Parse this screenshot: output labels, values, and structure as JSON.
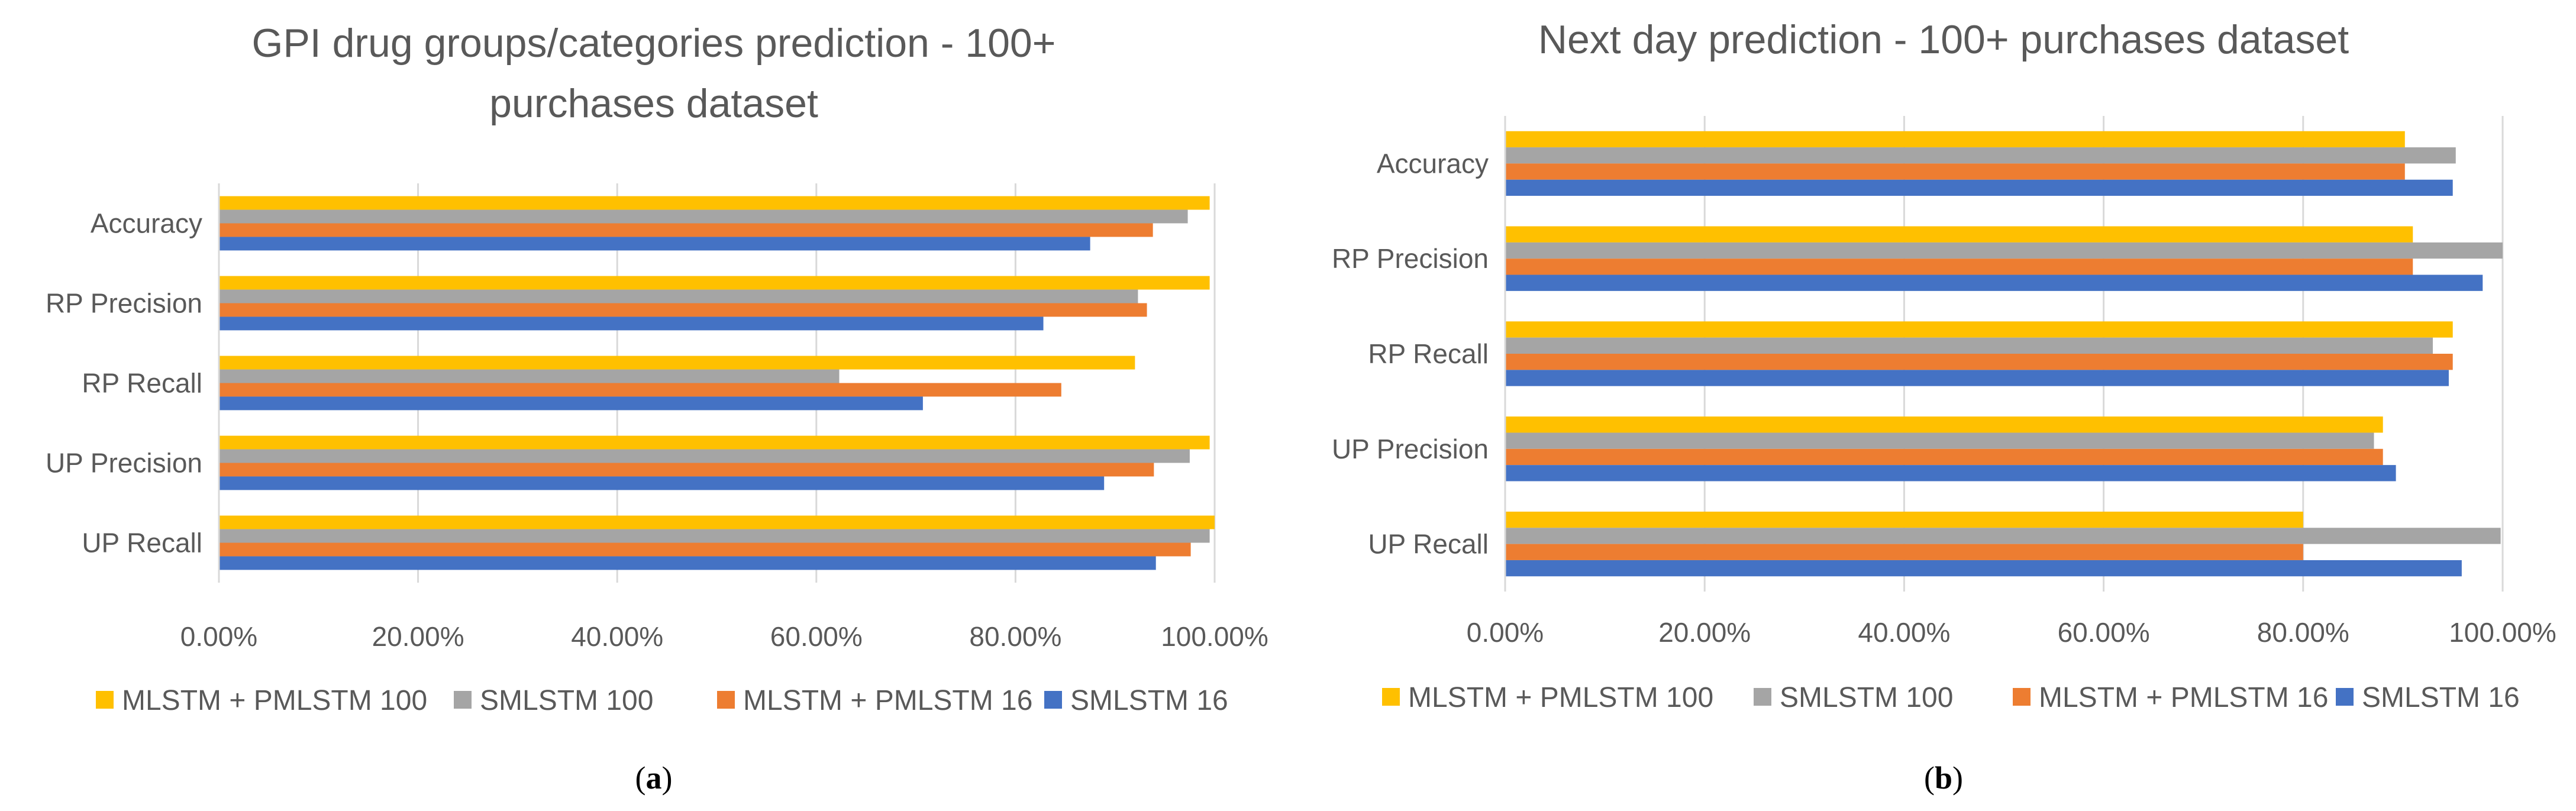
{
  "chart_data": [
    {
      "type": "bar",
      "orientation": "horizontal",
      "panel_label": "a",
      "title_lines": [
        "GPI drug groups/categories prediction - 100+",
        "purchases dataset"
      ],
      "categories": [
        "Accuracy",
        "RP Precision",
        "RP Recall",
        "UP Precision",
        "UP Recall"
      ],
      "xlim": [
        0,
        100
      ],
      "x_ticks": [
        "0.00%",
        "20.00%",
        "40.00%",
        "60.00%",
        "80.00%",
        "100.00%"
      ],
      "grid": "vertical",
      "legend_position": "bottom",
      "series": [
        {
          "name": "MLSTM + PMLSTM 100",
          "color": "#FFC000",
          "values": [
            99.5,
            99.5,
            92,
            99.5,
            100
          ]
        },
        {
          "name": "SMLSTM 100",
          "color": "#A5A5A5",
          "values": [
            97.3,
            92.3,
            62.3,
            97.5,
            99.5
          ]
        },
        {
          "name": "MLSTM + PMLSTM 16",
          "color": "#ED7D31",
          "values": [
            93.8,
            93.2,
            84.6,
            93.9,
            97.6
          ]
        },
        {
          "name": "SMLSTM 16",
          "color": "#4472C4",
          "values": [
            87.5,
            82.8,
            70.7,
            88.9,
            94.1
          ]
        }
      ]
    },
    {
      "type": "bar",
      "orientation": "horizontal",
      "panel_label": "b",
      "title_lines": [
        "Next day prediction - 100+ purchases dataset"
      ],
      "categories": [
        "Accuracy",
        "RP Precision",
        "RP Recall",
        "UP Precision",
        "UP Recall"
      ],
      "xlim": [
        0,
        100
      ],
      "x_ticks": [
        "0.00%",
        "20.00%",
        "40.00%",
        "60.00%",
        "80.00%",
        "100.00%"
      ],
      "grid": "vertical",
      "legend_position": "bottom",
      "series": [
        {
          "name": "MLSTM + PMLSTM 100",
          "color": "#FFC000",
          "values": [
            90.2,
            91.0,
            95.0,
            88.0,
            80.0
          ]
        },
        {
          "name": "SMLSTM 100",
          "color": "#A5A5A5",
          "values": [
            95.3,
            100,
            93.0,
            87.1,
            99.8
          ]
        },
        {
          "name": "MLSTM + PMLSTM 16",
          "color": "#ED7D31",
          "values": [
            90.2,
            91.0,
            95.0,
            88.0,
            80.0
          ]
        },
        {
          "name": "SMLSTM 16",
          "color": "#4472C4",
          "values": [
            95.0,
            98.0,
            94.6,
            89.3,
            95.9
          ]
        }
      ]
    }
  ]
}
